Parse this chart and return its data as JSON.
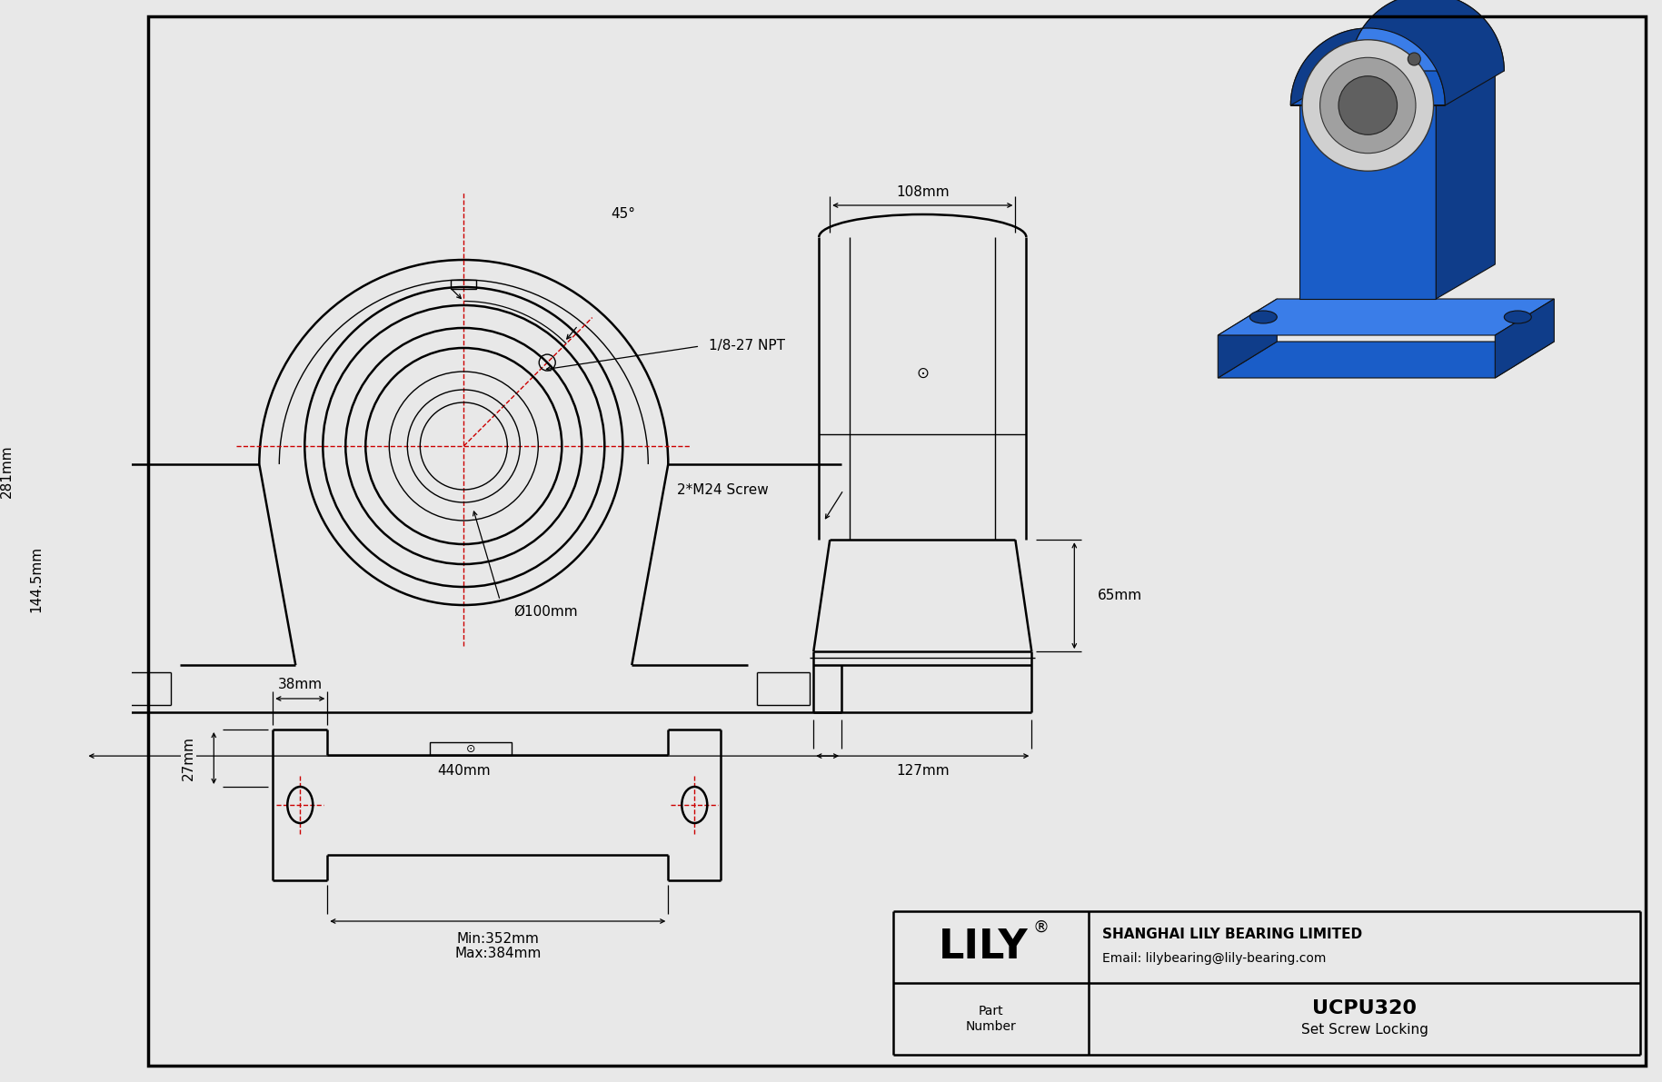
{
  "bg_color": "#e8e8e8",
  "line_color": "#000000",
  "red_line_color": "#cc0000",
  "part_number": "UCPU320",
  "locking": "Set Screw Locking",
  "company": "SHANGHAI LILY BEARING LIMITED",
  "email": "Email: lilybearing@lily-bearing.com",
  "lily_text": "LILY",
  "part_label": "Part\nNumber",
  "dims": {
    "total_height": "281mm",
    "center_height": "144.5mm",
    "total_width": "440mm",
    "bore_dia": "Ø100mm",
    "angle": "45°",
    "side_width": "108mm",
    "side_height_upper": "65mm",
    "side_base": "127mm",
    "screw_label": "2*M24 Screw",
    "npt_label": "1/8-27 NPT",
    "slot_width": "38mm",
    "slot_offset": "27mm",
    "min_length": "Min:352mm",
    "max_length": "Max:384mm"
  },
  "iso_blue": "#1a5dc8",
  "iso_blue_dark": "#0f3d8a",
  "iso_blue_light": "#3a7de8",
  "iso_silver": "#d0d0d0",
  "iso_silver_dark": "#a0a0a0"
}
